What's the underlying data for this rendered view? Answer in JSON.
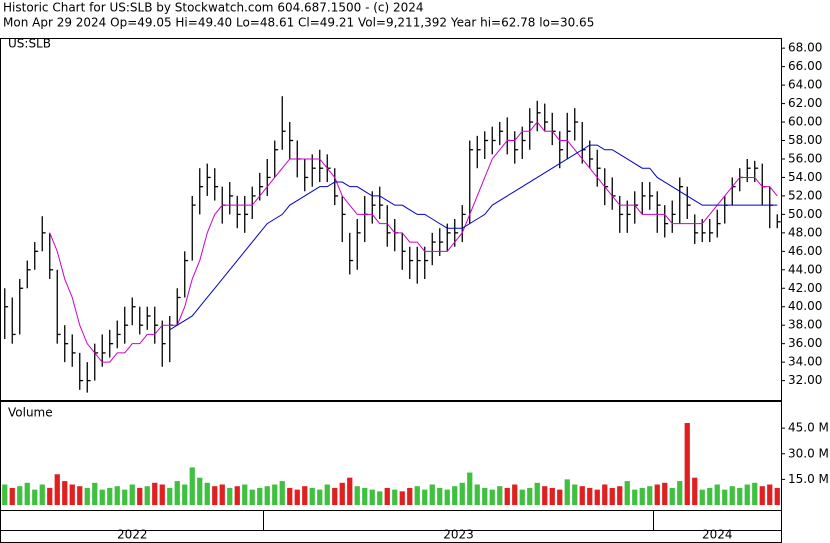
{
  "chart_data": [
    {
      "type": "ohlc",
      "title": "Historic Chart for US:SLB by Stockwatch.com 604.687.1500 - (c) 2024",
      "subtitle": "Mon Apr 29 2024  Op=49.05  Hi=49.40  Lo=48.61  Cl=49.21  Vol=9,211,392  Year hi=62.78  lo=30.65",
      "symbol": "US:SLB",
      "categories": [
        "2022",
        "2022",
        "2022",
        "2022",
        "2022",
        "2022",
        "2022",
        "2022",
        "2022",
        "2022",
        "2022",
        "2022",
        "2022",
        "2022",
        "2022",
        "2022",
        "2022",
        "2022",
        "2022",
        "2022",
        "2022",
        "2022",
        "2022",
        "2022",
        "2022",
        "2022",
        "2022",
        "2022",
        "2022",
        "2022",
        "2022",
        "2022",
        "2022",
        "2022",
        "2022",
        "2023",
        "2023",
        "2023",
        "2023",
        "2023",
        "2023",
        "2023",
        "2023",
        "2023",
        "2023",
        "2023",
        "2023",
        "2023",
        "2023",
        "2023",
        "2023",
        "2023",
        "2023",
        "2023",
        "2023",
        "2023",
        "2023",
        "2023",
        "2023",
        "2023",
        "2023",
        "2023",
        "2023",
        "2023",
        "2023",
        "2023",
        "2023",
        "2023",
        "2023",
        "2023",
        "2023",
        "2023",
        "2023",
        "2023",
        "2023",
        "2023",
        "2023",
        "2023",
        "2023",
        "2023",
        "2023",
        "2023",
        "2023",
        "2023",
        "2023",
        "2023",
        "2023",
        "2024",
        "2024",
        "2024",
        "2024",
        "2024",
        "2024",
        "2024",
        "2024",
        "2024",
        "2024",
        "2024",
        "2024",
        "2024",
        "2024",
        "2024",
        "2024",
        "2024"
      ],
      "high": [
        42,
        41,
        43,
        45,
        47,
        49.8,
        48,
        44,
        38,
        37,
        35,
        34,
        36,
        37,
        37.5,
        38.5,
        40,
        41,
        40,
        40,
        40,
        38.5,
        39,
        42,
        46,
        52,
        55,
        55.5,
        55,
        53,
        53.5,
        52,
        52,
        53,
        54.5,
        56,
        58,
        62.8,
        60,
        58,
        56,
        56.5,
        57,
        56.5,
        55,
        52,
        48,
        49.5,
        52,
        52.5,
        53,
        51,
        49.5,
        48,
        46.5,
        46.5,
        46.5,
        48,
        48.5,
        49,
        49.5,
        51,
        58,
        58.5,
        59,
        59.5,
        60,
        60.5,
        59,
        59.5,
        61.5,
        62.3,
        62,
        61,
        59,
        61,
        61.5,
        60,
        58,
        57,
        55,
        54,
        52,
        51.5,
        52.5,
        53.5,
        53.5,
        52.5,
        51,
        51.5,
        54,
        53,
        50,
        49.5,
        49.5,
        50.5,
        52,
        54,
        55,
        56,
        55.8,
        55.5,
        53,
        50
      ],
      "low": [
        36.5,
        36,
        37,
        42,
        44,
        46,
        43,
        36,
        34,
        33.5,
        31,
        30.7,
        32,
        33.5,
        34.5,
        35.5,
        36,
        38,
        37,
        37.5,
        36,
        33.5,
        34,
        38,
        41,
        45,
        50,
        52,
        51.5,
        49,
        50,
        48.5,
        48,
        49.5,
        51.5,
        52,
        54,
        57,
        56,
        54,
        52.5,
        53,
        53.5,
        53.5,
        51,
        47,
        43.5,
        44,
        47,
        49,
        49.5,
        46.5,
        46,
        44,
        43,
        42.5,
        43,
        44.5,
        45.5,
        46,
        46.5,
        47,
        49,
        55,
        56,
        56.5,
        57.5,
        56.5,
        55.5,
        56,
        57,
        59,
        59,
        57.5,
        55,
        56,
        58,
        55.5,
        55,
        53,
        51,
        50.5,
        48,
        48,
        49,
        50,
        50.5,
        48,
        47.5,
        48,
        49,
        49.5,
        46.8,
        47,
        47,
        47.5,
        49,
        51,
        52.5,
        53.5,
        53.5,
        51,
        48.5,
        48.5
      ],
      "close": [
        40,
        37,
        42,
        44,
        46,
        48,
        44,
        37,
        36,
        35,
        32,
        32,
        35,
        35,
        36,
        37,
        38,
        40,
        38,
        39,
        38,
        36,
        38,
        41,
        45,
        51,
        53,
        54,
        53,
        51,
        52,
        50,
        50,
        52,
        53,
        54,
        57,
        59,
        58,
        56,
        54,
        55,
        55,
        55,
        52,
        50,
        45,
        48,
        50,
        51,
        51,
        48,
        48,
        46,
        45,
        45,
        45,
        47,
        47,
        48,
        48,
        50,
        57,
        57,
        58,
        58,
        59,
        58,
        57,
        58,
        60,
        61,
        60,
        59,
        57,
        59,
        60,
        57,
        56,
        55,
        53,
        52,
        50,
        50,
        51,
        52,
        52,
        51,
        49,
        50,
        53,
        51,
        48,
        48,
        48,
        49,
        51,
        53,
        54,
        55,
        55,
        53,
        51,
        49.2
      ],
      "color": "#000000",
      "series": [
        {
          "color": "#cc00cc",
          "values": [
            null,
            null,
            null,
            null,
            null,
            null,
            48,
            46,
            43,
            41,
            38,
            36,
            35,
            34,
            34,
            35,
            35,
            36,
            36,
            37,
            37,
            38,
            38,
            38,
            40,
            43,
            45,
            48,
            50,
            51,
            51,
            51,
            51,
            51,
            52,
            53,
            54,
            55,
            56,
            56,
            56,
            56,
            56,
            55,
            54,
            52,
            51,
            50,
            50,
            50,
            49,
            49,
            48,
            48,
            47,
            47,
            46,
            46,
            46,
            46,
            47,
            48,
            50,
            52,
            54,
            56,
            57,
            58,
            58,
            59,
            59,
            60,
            59,
            59,
            58,
            58,
            57,
            56,
            55,
            54,
            53,
            52,
            51,
            51,
            51,
            50,
            50,
            50,
            50,
            49,
            49,
            49,
            49,
            49,
            50,
            51,
            52,
            53,
            54,
            54,
            54,
            53,
            53,
            52
          ]
        },
        {
          "color": "#0000cc",
          "values": [
            null,
            null,
            null,
            null,
            null,
            null,
            null,
            null,
            null,
            null,
            null,
            null,
            null,
            null,
            null,
            null,
            null,
            null,
            null,
            null,
            null,
            null,
            37.5,
            38,
            38.5,
            39,
            40,
            41,
            42,
            43,
            44,
            45,
            46,
            47,
            48,
            49,
            49.5,
            50,
            51,
            51.5,
            52,
            52.5,
            53,
            53,
            53.5,
            53.5,
            53,
            53,
            52.5,
            52,
            52,
            51.5,
            51,
            51,
            50.5,
            50,
            50,
            49.5,
            49,
            48.5,
            48.5,
            48.5,
            49,
            49.5,
            50,
            51,
            51.5,
            52,
            52.5,
            53,
            53.5,
            54,
            54.5,
            55,
            55.5,
            56,
            56.5,
            57,
            57.5,
            57.5,
            57,
            57,
            56.5,
            56,
            55.5,
            55,
            55,
            54,
            53.5,
            53,
            52.5,
            52,
            51.5,
            51,
            51,
            51,
            51,
            51,
            51,
            51,
            51,
            51,
            51,
            51
          ]
        }
      ],
      "ylim": [
        29.9,
        69.1
      ],
      "yticks": [
        {
          "value": 32,
          "label": "32.00"
        },
        {
          "value": 34,
          "label": "34.00"
        },
        {
          "value": 36,
          "label": "36.00"
        },
        {
          "value": 38,
          "label": "38.00"
        },
        {
          "value": 40,
          "label": "40.00"
        },
        {
          "value": 42,
          "label": "42.00"
        },
        {
          "value": 44,
          "label": "44.00"
        },
        {
          "value": 46,
          "label": "46.00"
        },
        {
          "value": 48,
          "label": "48.00"
        },
        {
          "value": 50,
          "label": "50.00"
        },
        {
          "value": 52,
          "label": "52.00"
        },
        {
          "value": 54,
          "label": "54.00"
        },
        {
          "value": 56,
          "label": "56.00"
        },
        {
          "value": 58,
          "label": "58.00"
        },
        {
          "value": 60,
          "label": "60.00"
        },
        {
          "value": 62,
          "label": "62.00"
        },
        {
          "value": 64,
          "label": "64.00"
        },
        {
          "value": 66,
          "label": "66.00"
        },
        {
          "value": 68,
          "label": "68.00"
        }
      ]
    },
    {
      "type": "bar",
      "title": "Volume",
      "up_color": "#e02020",
      "down_color": "#40c040",
      "values": [
        12,
        10,
        11,
        13,
        9,
        12,
        10,
        18,
        14,
        12,
        11,
        10,
        13,
        9,
        10,
        11,
        9,
        12,
        10,
        11,
        13,
        12,
        10,
        14,
        12,
        22,
        16,
        13,
        11,
        12,
        10,
        11,
        12,
        9,
        10,
        11,
        12,
        14,
        10,
        9,
        11,
        10,
        9,
        12,
        10,
        13,
        16,
        11,
        10,
        9,
        8,
        10,
        9,
        8,
        10,
        11,
        9,
        12,
        10,
        9,
        11,
        13,
        19,
        12,
        10,
        9,
        11,
        10,
        12,
        9,
        10,
        13,
        11,
        10,
        9,
        15,
        12,
        11,
        10,
        9,
        12,
        10,
        11,
        14,
        9,
        10,
        11,
        12,
        13,
        10,
        14,
        48,
        16,
        9,
        10,
        12,
        9,
        11,
        10,
        12,
        13,
        11,
        12,
        10
      ],
      "ylim": [
        0,
        60.3
      ],
      "yticks": [
        {
          "value": 15,
          "label": "15.0 M"
        },
        {
          "value": 30,
          "label": "30.0 M"
        },
        {
          "value": 45,
          "label": "45.0 M"
        }
      ]
    }
  ]
}
